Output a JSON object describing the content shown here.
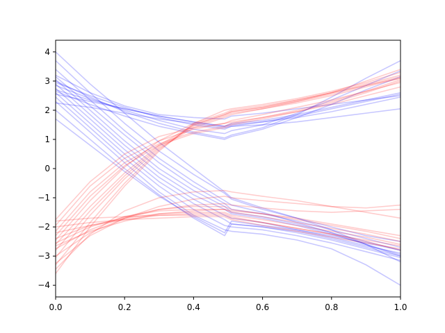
{
  "chart_data": {
    "type": "line",
    "title": "",
    "xlabel": "",
    "ylabel": "",
    "xlim": [
      0,
      1
    ],
    "ylim": [
      -4.4,
      4.4
    ],
    "xticks": [
      0.0,
      0.2,
      0.4,
      0.6,
      0.8,
      1.0
    ],
    "xtick_labels": [
      "0.0",
      "0.2",
      "0.4",
      "0.6",
      "0.8",
      "1.0"
    ],
    "yticks": [
      -4,
      -3,
      -2,
      -1,
      0,
      1,
      2,
      3,
      4
    ],
    "ytick_labels": [
      "−4",
      "−3",
      "−2",
      "−1",
      "0",
      "1",
      "2",
      "3",
      "4"
    ],
    "grid": false,
    "legend": "none",
    "x": [
      0.0,
      0.1,
      0.2,
      0.3,
      0.4,
      0.49,
      0.51,
      0.6,
      0.7,
      0.8,
      0.9,
      1.0
    ],
    "series": [
      {
        "color": "#0000ff",
        "opacity": 0.22,
        "values": [
          2.7,
          2.35,
          2.05,
          1.8,
          1.6,
          1.45,
          1.55,
          1.65,
          1.85,
          2.1,
          2.35,
          2.6
        ]
      },
      {
        "color": "#0000ff",
        "opacity": 0.22,
        "values": [
          3.2,
          2.6,
          2.15,
          1.85,
          1.75,
          1.7,
          1.8,
          1.9,
          2.05,
          2.2,
          2.35,
          2.5
        ]
      },
      {
        "color": "#0000ff",
        "opacity": 0.22,
        "values": [
          2.95,
          2.5,
          2.1,
          1.75,
          1.5,
          1.35,
          1.45,
          1.6,
          1.8,
          2.05,
          2.3,
          2.55
        ]
      },
      {
        "color": "#0000ff",
        "opacity": 0.22,
        "values": [
          2.55,
          2.3,
          2.05,
          1.8,
          1.6,
          1.45,
          1.5,
          1.6,
          1.75,
          1.95,
          2.2,
          2.45
        ]
      },
      {
        "color": "#0000ff",
        "opacity": 0.22,
        "values": [
          2.25,
          2.1,
          1.9,
          1.7,
          1.55,
          1.4,
          1.45,
          1.5,
          1.6,
          1.75,
          1.9,
          2.05
        ]
      },
      {
        "color": "#0000ff",
        "opacity": 0.22,
        "values": [
          3.0,
          2.45,
          1.95,
          1.55,
          1.25,
          1.05,
          1.15,
          1.4,
          1.85,
          2.45,
          3.1,
          3.7
        ]
      },
      {
        "color": "#0000ff",
        "opacity": 0.22,
        "values": [
          2.85,
          2.4,
          2.0,
          1.65,
          1.35,
          1.2,
          1.3,
          1.5,
          1.9,
          2.35,
          2.85,
          3.35
        ]
      },
      {
        "color": "#0000ff",
        "opacity": 0.22,
        "values": [
          2.65,
          2.2,
          1.8,
          1.45,
          1.2,
          1.0,
          1.1,
          1.35,
          1.75,
          2.2,
          2.7,
          3.15
        ]
      },
      {
        "color": "#0000ff",
        "opacity": 0.22,
        "values": [
          4.0,
          2.9,
          1.9,
          0.9,
          0.0,
          -0.8,
          -1.0,
          -1.35,
          -1.7,
          -2.0,
          -2.3,
          -2.5
        ]
      },
      {
        "color": "#0000ff",
        "opacity": 0.22,
        "values": [
          3.7,
          2.6,
          1.55,
          0.6,
          -0.2,
          -0.85,
          -1.05,
          -1.4,
          -1.7,
          -2.1,
          -2.6,
          -3.2
        ]
      },
      {
        "color": "#0000ff",
        "opacity": 0.22,
        "values": [
          3.4,
          2.35,
          1.3,
          0.35,
          -0.45,
          -1.1,
          -1.25,
          -1.5,
          -1.85,
          -2.2,
          -2.6,
          -3.0
        ]
      },
      {
        "color": "#0000ff",
        "opacity": 0.22,
        "values": [
          3.15,
          2.15,
          1.15,
          0.2,
          -0.6,
          -1.2,
          -1.4,
          -1.55,
          -1.8,
          -2.1,
          -2.4,
          -2.7
        ]
      },
      {
        "color": "#0000ff",
        "opacity": 0.22,
        "values": [
          3.05,
          2.0,
          0.95,
          0.0,
          -0.75,
          -1.3,
          -1.5,
          -1.65,
          -1.9,
          -2.2,
          -2.5,
          -2.8
        ]
      },
      {
        "color": "#0000ff",
        "opacity": 0.22,
        "values": [
          2.9,
          1.85,
          0.8,
          -0.15,
          -0.9,
          -1.4,
          -1.55,
          -1.7,
          -1.95,
          -2.25,
          -2.6,
          -2.95
        ]
      },
      {
        "color": "#0000ff",
        "opacity": 0.22,
        "values": [
          2.75,
          1.7,
          0.65,
          -0.3,
          -1.05,
          -1.6,
          -1.7,
          -1.85,
          -2.1,
          -2.35,
          -2.65,
          -2.9
        ]
      },
      {
        "color": "#0000ff",
        "opacity": 0.22,
        "values": [
          2.6,
          1.55,
          0.5,
          -0.45,
          -1.2,
          -1.75,
          -1.9,
          -2.0,
          -2.2,
          -2.45,
          -2.75,
          -3.05
        ]
      },
      {
        "color": "#0000ff",
        "opacity": 0.22,
        "values": [
          2.45,
          1.4,
          0.35,
          -0.6,
          -1.4,
          -1.95,
          -2.0,
          -2.1,
          -2.3,
          -2.55,
          -2.85,
          -3.15
        ]
      },
      {
        "color": "#0000ff",
        "opacity": 0.22,
        "values": [
          2.3,
          1.25,
          0.2,
          -0.8,
          -1.6,
          -2.1,
          -2.15,
          -2.25,
          -2.45,
          -2.75,
          -3.3,
          -4.0
        ]
      },
      {
        "color": "#0000ff",
        "opacity": 0.22,
        "values": [
          2.0,
          1.0,
          0.0,
          -0.9,
          -1.7,
          -2.3,
          -1.9,
          -2.0,
          -2.15,
          -2.4,
          -2.7,
          -3.0
        ]
      },
      {
        "color": "#0000ff",
        "opacity": 0.22,
        "values": [
          1.7,
          0.8,
          -0.1,
          -0.95,
          -1.65,
          -2.2,
          -1.8,
          -1.95,
          -2.1,
          -2.3,
          -2.55,
          -2.8
        ]
      },
      {
        "color": "#ff0000",
        "opacity": 0.2,
        "values": [
          -3.6,
          -2.0,
          -0.6,
          0.6,
          1.55,
          2.0,
          2.05,
          2.2,
          2.4,
          2.65,
          2.95,
          3.3
        ]
      },
      {
        "color": "#ff0000",
        "opacity": 0.2,
        "values": [
          -3.3,
          -1.85,
          -0.5,
          0.65,
          1.5,
          1.85,
          1.95,
          2.1,
          2.35,
          2.6,
          2.9,
          3.2
        ]
      },
      {
        "color": "#ff0000",
        "opacity": 0.2,
        "values": [
          -3.05,
          -1.6,
          -0.35,
          0.7,
          1.4,
          1.75,
          1.85,
          2.05,
          2.3,
          2.6,
          3.0,
          3.4
        ]
      },
      {
        "color": "#ff0000",
        "opacity": 0.2,
        "values": [
          -2.8,
          -1.45,
          -0.25,
          0.75,
          1.45,
          1.8,
          1.9,
          2.05,
          2.25,
          2.5,
          2.8,
          3.1
        ]
      },
      {
        "color": "#ff0000",
        "opacity": 0.2,
        "values": [
          -2.6,
          -1.3,
          -0.15,
          0.8,
          1.5,
          1.85,
          1.95,
          2.1,
          2.3,
          2.55,
          2.85,
          3.15
        ]
      },
      {
        "color": "#ff0000",
        "opacity": 0.2,
        "values": [
          -2.45,
          -1.1,
          0.05,
          0.95,
          1.55,
          1.9,
          2.0,
          2.15,
          2.35,
          2.6,
          2.85,
          3.1
        ]
      },
      {
        "color": "#ff0000",
        "opacity": 0.2,
        "values": [
          -2.3,
          -0.95,
          0.1,
          0.8,
          1.2,
          1.4,
          1.5,
          1.7,
          1.95,
          2.25,
          2.6,
          3.0
        ]
      },
      {
        "color": "#ff0000",
        "opacity": 0.2,
        "values": [
          -2.15,
          -0.8,
          0.2,
          0.85,
          1.25,
          1.45,
          1.55,
          1.75,
          2.0,
          2.3,
          2.65,
          3.05
        ]
      },
      {
        "color": "#ff0000",
        "opacity": 0.2,
        "values": [
          -1.95,
          -0.6,
          0.35,
          0.95,
          1.35,
          1.55,
          1.65,
          1.85,
          2.1,
          2.35,
          2.65,
          2.95
        ]
      },
      {
        "color": "#ff0000",
        "opacity": 0.2,
        "values": [
          -1.75,
          -0.45,
          0.5,
          1.1,
          1.4,
          1.55,
          1.6,
          1.75,
          1.95,
          2.2,
          2.5,
          2.8
        ]
      },
      {
        "color": "#ff0000",
        "opacity": 0.2,
        "values": [
          -3.45,
          -2.25,
          -1.45,
          -1.0,
          -0.8,
          -0.75,
          -0.8,
          -0.95,
          -1.1,
          -1.3,
          -1.5,
          -1.7
        ]
      },
      {
        "color": "#ff0000",
        "opacity": 0.2,
        "values": [
          -3.25,
          -2.3,
          -1.7,
          -1.3,
          -1.05,
          -0.95,
          -1.0,
          -1.1,
          -1.2,
          -1.3,
          -1.35,
          -1.25
        ]
      },
      {
        "color": "#ff0000",
        "opacity": 0.2,
        "values": [
          -3.0,
          -2.2,
          -1.7,
          -1.4,
          -1.25,
          -1.2,
          -1.25,
          -1.35,
          -1.45,
          -1.5,
          -1.45,
          -1.4
        ]
      },
      {
        "color": "#ff0000",
        "opacity": 0.2,
        "values": [
          -2.75,
          -2.1,
          -1.65,
          -1.4,
          -1.3,
          -1.3,
          -1.4,
          -1.55,
          -1.75,
          -1.95,
          -2.15,
          -2.4
        ]
      },
      {
        "color": "#ff0000",
        "opacity": 0.2,
        "values": [
          -2.55,
          -2.0,
          -1.65,
          -1.45,
          -1.4,
          -1.4,
          -1.5,
          -1.65,
          -1.85,
          -2.05,
          -2.25,
          -2.5
        ]
      },
      {
        "color": "#ff0000",
        "opacity": 0.2,
        "values": [
          -2.4,
          -1.95,
          -1.7,
          -1.55,
          -1.5,
          -1.5,
          -1.6,
          -1.75,
          -1.95,
          -2.15,
          -2.35,
          -2.6
        ]
      },
      {
        "color": "#ff0000",
        "opacity": 0.2,
        "values": [
          -2.2,
          -1.95,
          -1.75,
          -1.6,
          -1.55,
          -1.55,
          -1.65,
          -1.85,
          -2.05,
          -2.25,
          -2.5,
          -2.8
        ]
      },
      {
        "color": "#ff0000",
        "opacity": 0.2,
        "values": [
          -2.0,
          -1.85,
          -1.75,
          -1.7,
          -1.65,
          -1.65,
          -1.75,
          -1.95,
          -2.15,
          -2.35,
          -2.55,
          -2.75
        ]
      },
      {
        "color": "#ff0000",
        "opacity": 0.2,
        "values": [
          -1.8,
          -1.7,
          -1.65,
          -1.6,
          -1.6,
          -1.6,
          -1.7,
          -1.85,
          -2.05,
          -2.25,
          -2.45,
          -2.65
        ]
      },
      {
        "color": "#ff0000",
        "opacity": 0.2,
        "values": [
          -2.65,
          -2.15,
          -1.8,
          -1.55,
          -1.45,
          -1.4,
          -1.45,
          -1.55,
          -1.7,
          -1.9,
          -2.1,
          -2.3
        ]
      }
    ]
  }
}
